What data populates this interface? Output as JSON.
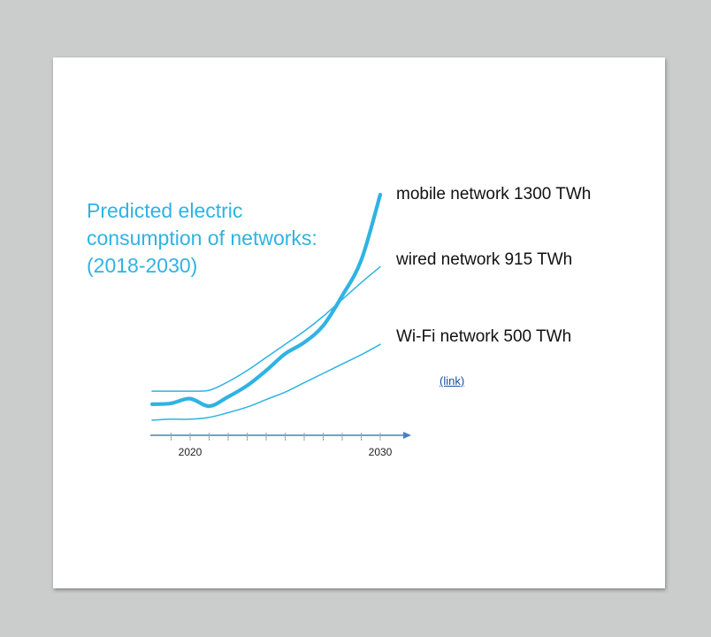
{
  "chart_data": {
    "type": "line",
    "title": [
      "Predicted electric",
      "consumption of networks:",
      "(2018-2030)"
    ],
    "xlabel": "",
    "ylabel": "",
    "xlim": [
      2018,
      2030
    ],
    "x_ticks": [
      2018,
      2019,
      2020,
      2021,
      2022,
      2023,
      2024,
      2025,
      2026,
      2027,
      2028,
      2029,
      2030
    ],
    "x_tick_labels": [
      {
        "x": 2020,
        "label": "2020"
      },
      {
        "x": 2030,
        "label": "2030"
      }
    ],
    "grid": false,
    "legend": "inline labels at line ends (right)",
    "series": [
      {
        "name": "mobile network 1300 TWh",
        "end_value": "1300 TWh",
        "color": "#2fb3e3",
        "line": "thick",
        "points": [
          [
            2018,
            180
          ],
          [
            2019,
            185
          ],
          [
            2020,
            210
          ],
          [
            2021,
            170
          ],
          [
            2022,
            220
          ],
          [
            2023,
            280
          ],
          [
            2024,
            360
          ],
          [
            2025,
            450
          ],
          [
            2026,
            510
          ],
          [
            2027,
            600
          ],
          [
            2028,
            760
          ],
          [
            2029,
            950
          ],
          [
            2030,
            1300
          ]
        ]
      },
      {
        "name": "wired network 915 TWh",
        "end_value": "915 TWh",
        "color": "#2fb3e3",
        "line": "thin",
        "points": [
          [
            2018,
            250
          ],
          [
            2019,
            250
          ],
          [
            2020,
            250
          ],
          [
            2021,
            255
          ],
          [
            2022,
            300
          ],
          [
            2023,
            360
          ],
          [
            2024,
            430
          ],
          [
            2025,
            500
          ],
          [
            2026,
            570
          ],
          [
            2027,
            650
          ],
          [
            2028,
            740
          ],
          [
            2029,
            830
          ],
          [
            2030,
            915
          ]
        ]
      },
      {
        "name": "Wi-Fi network 500 TWh",
        "end_value": "500 TWh",
        "color": "#2fb3e3",
        "line": "thin",
        "points": [
          [
            2018,
            95
          ],
          [
            2019,
            100
          ],
          [
            2020,
            100
          ],
          [
            2021,
            110
          ],
          [
            2022,
            135
          ],
          [
            2023,
            165
          ],
          [
            2024,
            205
          ],
          [
            2025,
            245
          ],
          [
            2026,
            295
          ],
          [
            2027,
            345
          ],
          [
            2028,
            395
          ],
          [
            2029,
            445
          ],
          [
            2030,
            500
          ]
        ]
      }
    ]
  },
  "link_text": "(link)",
  "colors": {
    "accent": "#2fb3e3",
    "axis": "#4a7fc1",
    "link": "#1a4fa0"
  }
}
